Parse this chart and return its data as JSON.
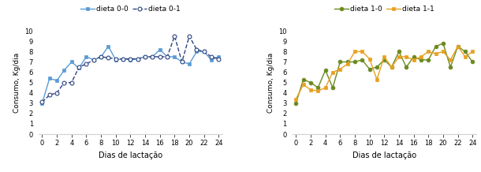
{
  "x": [
    0,
    1,
    2,
    3,
    4,
    5,
    6,
    7,
    8,
    9,
    10,
    11,
    12,
    13,
    14,
    15,
    16,
    17,
    18,
    19,
    20,
    21,
    22,
    23,
    24
  ],
  "dieta_00": [
    3.0,
    5.4,
    5.2,
    6.2,
    7.0,
    6.4,
    7.5,
    7.2,
    7.5,
    8.5,
    7.2,
    7.3,
    7.2,
    7.3,
    7.5,
    7.5,
    8.2,
    7.5,
    7.5,
    7.0,
    6.8,
    8.0,
    8.0,
    7.2,
    7.5
  ],
  "dieta_01": [
    3.1,
    3.8,
    4.0,
    5.0,
    5.0,
    6.5,
    6.8,
    7.2,
    7.5,
    7.4,
    7.3,
    7.3,
    7.3,
    7.3,
    7.5,
    7.5,
    7.5,
    7.5,
    9.5,
    7.0,
    9.5,
    8.2,
    8.0,
    7.5,
    7.3
  ],
  "dieta_10": [
    3.0,
    5.3,
    5.0,
    4.5,
    6.2,
    4.5,
    7.0,
    7.0,
    7.0,
    7.2,
    6.3,
    6.5,
    7.2,
    6.5,
    8.0,
    6.5,
    7.5,
    7.2,
    7.2,
    8.5,
    8.8,
    6.5,
    8.5,
    8.0,
    7.0
  ],
  "dieta_11": [
    3.4,
    4.8,
    4.3,
    4.2,
    4.5,
    6.0,
    6.3,
    6.8,
    8.0,
    8.0,
    7.3,
    5.3,
    7.5,
    6.5,
    7.5,
    7.5,
    7.2,
    7.5,
    8.0,
    7.8,
    8.0,
    7.2,
    8.5,
    7.5,
    8.0
  ],
  "color_00": "#5b9bd5",
  "color_01": "#2e4480",
  "color_10": "#6a8a1f",
  "color_11": "#e8a020",
  "ylabel": "Consumo, Kg/dia",
  "xlabel": "Dias de lactação",
  "ylim": [
    0,
    10
  ],
  "yticks": [
    0,
    1,
    2,
    3,
    4,
    5,
    6,
    7,
    8,
    9,
    10
  ],
  "xticks": [
    0,
    2,
    4,
    6,
    8,
    10,
    12,
    14,
    16,
    18,
    20,
    22,
    24
  ],
  "label_00": "dieta 0-0",
  "label_01": "dieta 0-1",
  "label_10": "dieta 1-0",
  "label_11": "dieta 1-1"
}
